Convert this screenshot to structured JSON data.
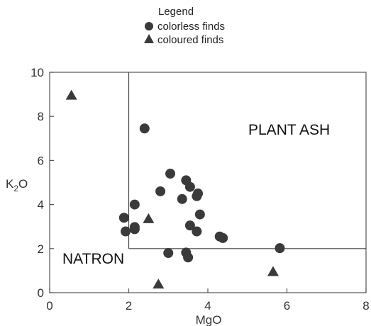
{
  "chart_data": {
    "type": "scatter",
    "xlabel": "MgO",
    "ylabel": {
      "base": "K",
      "sub": "2",
      "tail": "O"
    },
    "xlim": [
      0,
      8
    ],
    "ylim": [
      0,
      10
    ],
    "x_ticks": [
      0,
      2,
      4,
      6,
      8
    ],
    "y_ticks": [
      0,
      2,
      4,
      6,
      8,
      10
    ],
    "grid": false,
    "legend": {
      "title": "Legend",
      "placement": "top-center",
      "entries": [
        {
          "label": "colorless finds",
          "marker": "circle"
        },
        {
          "label": "coloured finds",
          "marker": "triangle"
        }
      ]
    },
    "regions": {
      "natron": {
        "label": "NATRON"
      },
      "plant_ash": {
        "label": "PLANT ASH"
      },
      "boundary": {
        "x": 2,
        "y": 2
      }
    },
    "series": [
      {
        "name": "colorless finds",
        "marker": "circle",
        "color": "#3a3a3a",
        "points": [
          [
            2.4,
            7.45
          ],
          [
            3.05,
            5.4
          ],
          [
            3.45,
            5.1
          ],
          [
            3.55,
            4.8
          ],
          [
            3.75,
            4.5
          ],
          [
            3.72,
            4.38
          ],
          [
            2.8,
            4.6
          ],
          [
            3.35,
            4.25
          ],
          [
            2.15,
            4.0
          ],
          [
            3.8,
            3.55
          ],
          [
            1.88,
            3.4
          ],
          [
            2.15,
            2.98
          ],
          [
            2.15,
            2.88
          ],
          [
            1.92,
            2.78
          ],
          [
            3.55,
            3.05
          ],
          [
            3.72,
            2.78
          ],
          [
            4.3,
            2.55
          ],
          [
            4.38,
            2.48
          ],
          [
            3.0,
            1.8
          ],
          [
            3.45,
            1.82
          ],
          [
            3.5,
            1.6
          ],
          [
            5.82,
            2.02
          ]
        ]
      },
      {
        "name": "coloured finds",
        "marker": "triangle",
        "color": "#3a3a3a",
        "points": [
          [
            0.55,
            8.95
          ],
          [
            2.5,
            3.35
          ],
          [
            2.75,
            0.38
          ],
          [
            5.65,
            0.95
          ]
        ]
      }
    ]
  }
}
